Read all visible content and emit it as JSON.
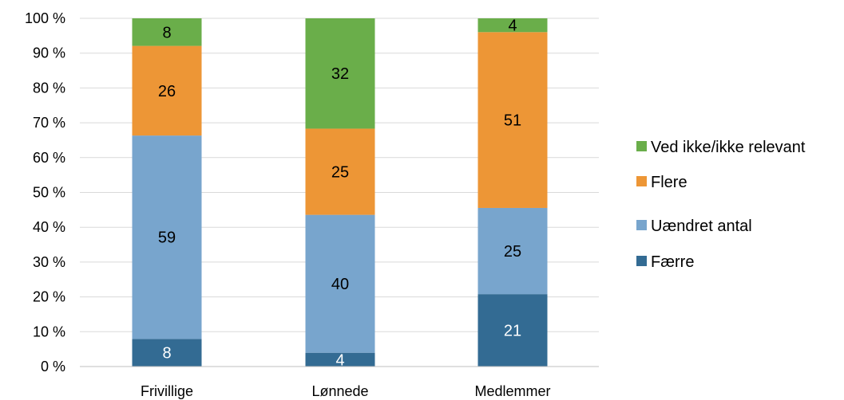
{
  "chart_data": {
    "type": "bar",
    "stacked": true,
    "percent_stacked": true,
    "categories": [
      "Frivillige",
      "Lønnede",
      "Medlemmer"
    ],
    "series": [
      {
        "name": "Færre",
        "values": [
          8,
          4,
          21
        ],
        "color": "#336b93",
        "label_color": "#ffffff"
      },
      {
        "name": "Uændret antal",
        "values": [
          59,
          40,
          25
        ],
        "color": "#78a5cd",
        "label_color": "#000000"
      },
      {
        "name": "Flere",
        "values": [
          26,
          25,
          51
        ],
        "color": "#ed9636",
        "label_color": "#000000"
      },
      {
        "name": "Ved ikke/ikke relevant",
        "values": [
          8,
          32,
          4
        ],
        "color": "#6aae4a",
        "label_color": "#000000"
      }
    ],
    "yticks": [
      "0 %",
      "10 %",
      "20 %",
      "30 %",
      "40 %",
      "50 %",
      "60 %",
      "70 %",
      "80 %",
      "90 %",
      "100 %"
    ],
    "ylim": [
      0,
      100
    ],
    "grid": true,
    "legend_position": "right",
    "legend_order": [
      "Ved ikke/ikke relevant",
      "Flere",
      "Uændret antal",
      "Færre"
    ]
  }
}
